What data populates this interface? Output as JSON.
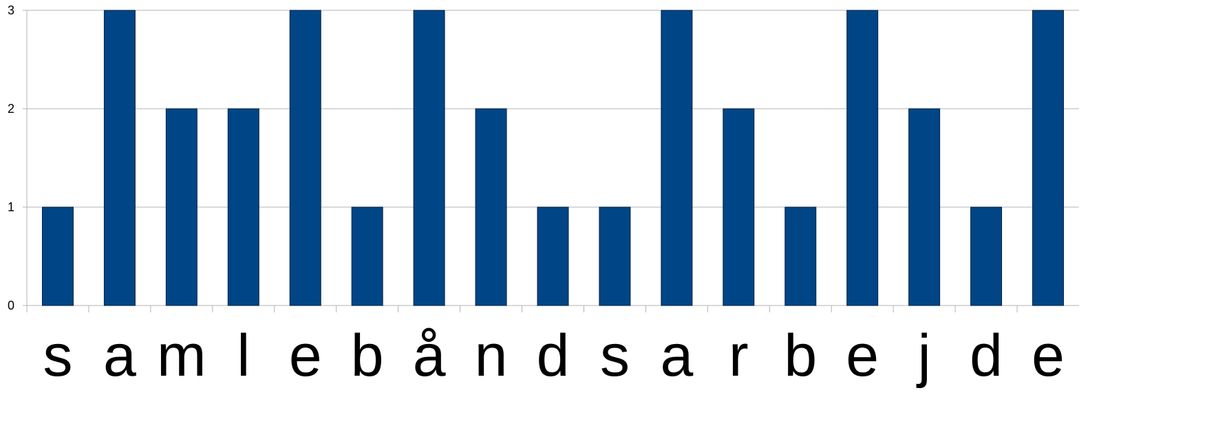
{
  "chart_data": {
    "type": "bar",
    "title": "",
    "xlabel": "",
    "ylabel": "",
    "categories": [
      "s",
      "a",
      "m",
      "l",
      "e",
      "b",
      "å",
      "n",
      "d",
      "s",
      "a",
      "r",
      "b",
      "e",
      "j",
      "d",
      "e"
    ],
    "values": [
      1,
      3,
      2,
      2,
      3,
      1,
      3,
      2,
      1,
      1,
      3,
      2,
      1,
      3,
      2,
      1,
      3
    ],
    "ylim": [
      0,
      3
    ],
    "yticks": [
      "0",
      "1",
      "2",
      "3"
    ],
    "grid": true,
    "legend": "none",
    "colors": {
      "bar_fill": "#004586",
      "bar_stroke": "#001f3f",
      "grid": "#b3b3b3",
      "axis": "#b3b3b3"
    }
  }
}
